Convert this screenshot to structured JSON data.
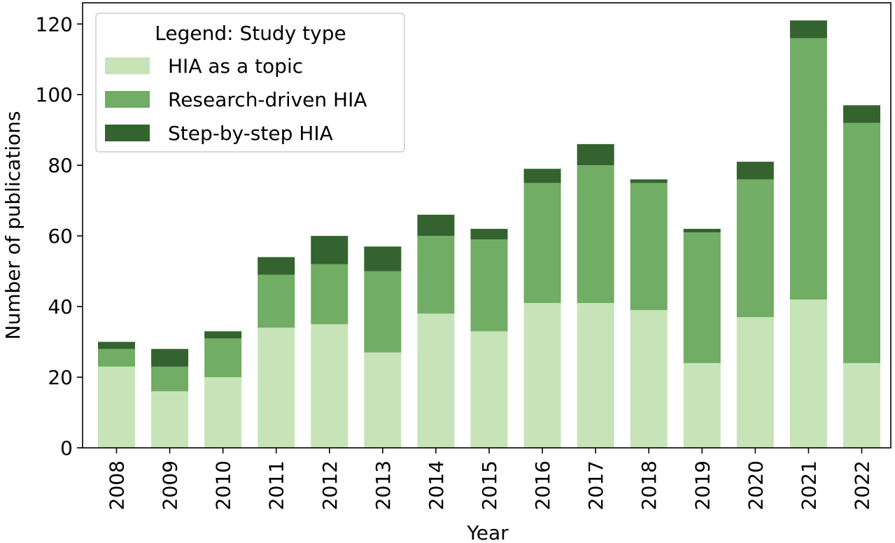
{
  "chart_data": {
    "type": "bar",
    "stacked": true,
    "categories": [
      "2008",
      "2009",
      "2010",
      "2011",
      "2012",
      "2013",
      "2014",
      "2015",
      "2016",
      "2017",
      "2018",
      "2019",
      "2020",
      "2021",
      "2022"
    ],
    "series": [
      {
        "name": "HIA as a topic",
        "color": "#c7e4b8",
        "values": [
          23,
          16,
          20,
          34,
          35,
          27,
          38,
          33,
          41,
          41,
          39,
          24,
          37,
          42,
          24
        ]
      },
      {
        "name": "Research-driven HIA",
        "color": "#71ad64",
        "values": [
          5,
          7,
          11,
          15,
          17,
          23,
          22,
          26,
          34,
          39,
          36,
          37,
          39,
          74,
          68
        ]
      },
      {
        "name": "Step-by-step HIA",
        "color": "#34632f",
        "values": [
          2,
          5,
          2,
          5,
          8,
          7,
          6,
          3,
          4,
          6,
          1,
          1,
          5,
          5,
          5
        ]
      }
    ],
    "title": "",
    "xlabel": "Year",
    "ylabel": "Number of publications",
    "ylim": [
      0,
      126
    ],
    "yticks": [
      0,
      20,
      40,
      60,
      80,
      100,
      120
    ],
    "grid": false,
    "legend": {
      "title": "Legend: Study type",
      "position": "top-left"
    }
  }
}
